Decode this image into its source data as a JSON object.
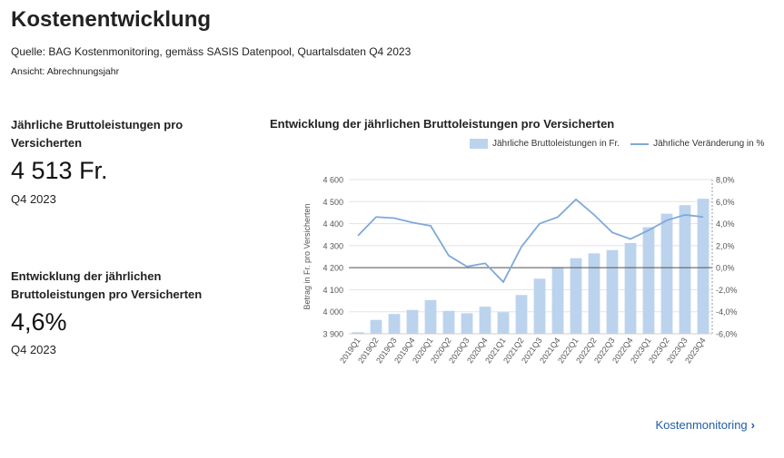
{
  "page": {
    "title": "Kostenentwicklung",
    "source": "Quelle: BAG Kostenmonitoring, gemäss SASIS Datenpool, Quartalsdaten Q4 2023",
    "view": "Ansicht: Abrechnungsjahr"
  },
  "kpis": [
    {
      "label": "Jährliche Bruttoleistungen pro Versicherten",
      "value": "4 513 Fr.",
      "period": "Q4 2023"
    },
    {
      "label": "Entwicklung der jährlichen Bruttoleistungen pro Versicherten",
      "value": "4,6%",
      "period": "Q4 2023"
    }
  ],
  "link": {
    "label": "Kostenmonitoring"
  },
  "colors": {
    "bar": "#bcd3ee",
    "line": "#7fa8d9",
    "link": "#1f5ea8"
  },
  "chart_data": {
    "type": "bar",
    "title": "Entwicklung der jährlichen Bruttoleistungen pro Versicherten",
    "legend": "top-right",
    "categories": [
      "2019Q1",
      "2019Q2",
      "2019Q3",
      "2019Q4",
      "2020Q1",
      "2020Q2",
      "2020Q3",
      "2020Q4",
      "2021Q1",
      "2021Q2",
      "2021Q3",
      "2021Q4",
      "2022Q1",
      "2022Q2",
      "2022Q3",
      "2022Q4",
      "2023Q1",
      "2023Q2",
      "2023Q3",
      "2023Q4"
    ],
    "series": [
      {
        "name": "Jährliche Bruttoleistungen in Fr.",
        "type": "bar",
        "axis": "left",
        "values": [
          3907,
          3963,
          3990,
          4008,
          4053,
          4004,
          3993,
          4023,
          3998,
          4076,
          4150,
          4203,
          4243,
          4265,
          4280,
          4312,
          4384,
          4445,
          4484,
          4513
        ]
      },
      {
        "name": "Jährliche Veränderung in %",
        "type": "line",
        "axis": "right",
        "values": [
          2.9,
          4.6,
          4.5,
          4.1,
          3.8,
          1.1,
          0.1,
          0.4,
          -1.3,
          1.9,
          4.0,
          4.6,
          6.2,
          4.8,
          3.2,
          2.6,
          3.4,
          4.3,
          4.8,
          4.6
        ]
      }
    ],
    "ylabel": "Betrag in Fr. pro Versicherten",
    "ylim": [
      3900,
      4600
    ],
    "yticks": [
      "3 900",
      "4 000",
      "4 100",
      "4 200",
      "4 300",
      "4 400",
      "4 500",
      "4 600"
    ],
    "y2lim": [
      -6,
      8
    ],
    "y2ticks": [
      "-6,0%",
      "-4,0%",
      "-2,0%",
      "0,0%",
      "2,0%",
      "4,0%",
      "6,0%",
      "8,0%"
    ],
    "grid": true
  }
}
